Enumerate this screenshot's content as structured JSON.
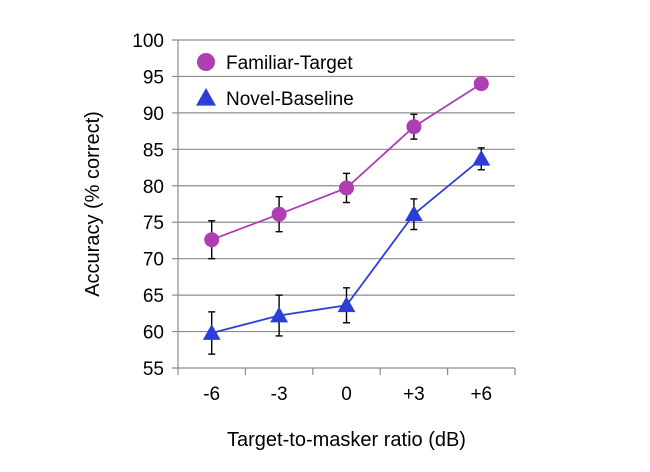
{
  "chart_data": {
    "type": "line",
    "title": "",
    "xlabel": "Target-to-masker ratio (dB)",
    "ylabel": "Accuracy (% correct)",
    "categories": [
      "-6",
      "-3",
      "0",
      "+3",
      "+6"
    ],
    "ylim": [
      55,
      100
    ],
    "yticks": [
      55,
      60,
      65,
      70,
      75,
      80,
      85,
      90,
      95,
      100
    ],
    "grid": "horizontal",
    "legend": "top-left",
    "series": [
      {
        "name": "Familiar-Target",
        "marker": "circle",
        "color": "#B03EB3",
        "values": [
          72.6,
          76.1,
          79.7,
          88.1,
          94.0
        ],
        "error": [
          2.6,
          2.4,
          2.0,
          1.7,
          0.7
        ]
      },
      {
        "name": "Novel-Baseline",
        "marker": "triangle",
        "color": "#2B3FD8",
        "values": [
          59.8,
          62.2,
          63.6,
          76.1,
          83.7
        ],
        "error": [
          2.9,
          2.8,
          2.4,
          2.1,
          1.5
        ]
      }
    ]
  }
}
